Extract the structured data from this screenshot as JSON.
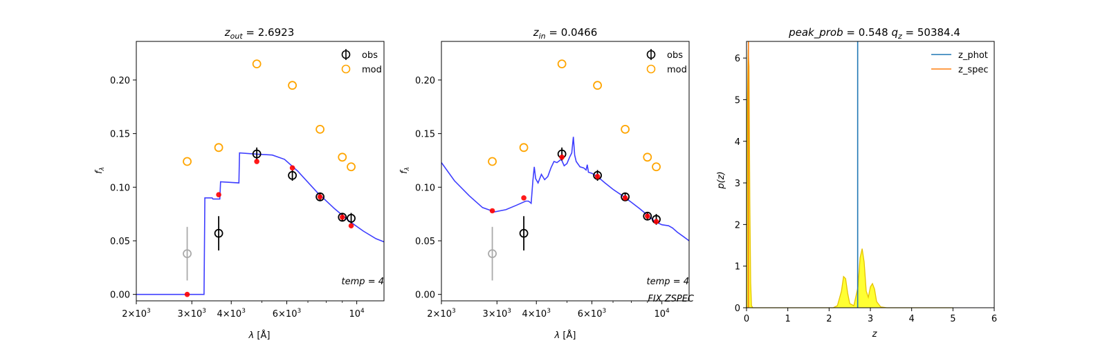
{
  "chart_data": [
    {
      "type": "scatter",
      "title": {
        "var": "z",
        "sub": "out",
        "value": "2.6923"
      },
      "xlabel": {
        "pre": "λ [",
        "unit": "Å",
        "post": "]"
      },
      "ylabel": {
        "var": "f",
        "sub": "λ"
      },
      "xscale": "log",
      "xlim": [
        2000,
        12200
      ],
      "ylim": [
        -0.006,
        0.236
      ],
      "xticks": [
        {
          "x": 2000,
          "base": "2×10",
          "exp": "3"
        },
        {
          "x": 3000,
          "base": "3×10",
          "exp": "3"
        },
        {
          "x": 4000,
          "base": "4×10",
          "exp": "3"
        },
        {
          "x": 6000,
          "base": "6×10",
          "exp": "3"
        },
        {
          "x": 10000,
          "base": "10",
          "exp": "4"
        }
      ],
      "yticks": [
        "0.00",
        "0.05",
        "0.10",
        "0.15",
        "0.20"
      ],
      "legend": {
        "position": "top-right",
        "entries": [
          "obs",
          "mod"
        ]
      },
      "annotations": [
        {
          "text": "temp = 4",
          "style": "italic",
          "position": "bottom-right"
        }
      ],
      "series": [
        {
          "name": "obs",
          "color": "#000000",
          "marker": "open-circle",
          "points": [
            {
              "x": 3650,
              "y": 0.057,
              "err": 0.016
            },
            {
              "x": 4820,
              "y": 0.131,
              "err": 0.006
            },
            {
              "x": 6250,
              "y": 0.111,
              "err": 0.005
            },
            {
              "x": 7650,
              "y": 0.091,
              "err": 0.004
            },
            {
              "x": 9000,
              "y": 0.072,
              "err": 0.004
            },
            {
              "x": 9600,
              "y": 0.071,
              "err": 0.005
            }
          ]
        },
        {
          "name": "obs (excluded)",
          "color": "#aaaaaa",
          "marker": "open-circle",
          "points": [
            {
              "x": 2900,
              "y": 0.038,
              "err": 0.025
            }
          ]
        },
        {
          "name": "mod",
          "color": "#ffa500",
          "marker": "open-circle",
          "points": [
            {
              "x": 2900,
              "y": 0.124
            },
            {
              "x": 3650,
              "y": 0.137
            },
            {
              "x": 4820,
              "y": 0.215
            },
            {
              "x": 6250,
              "y": 0.195
            },
            {
              "x": 7650,
              "y": 0.154
            },
            {
              "x": 9000,
              "y": 0.128
            },
            {
              "x": 9600,
              "y": 0.119
            }
          ]
        },
        {
          "name": "model flux",
          "color": "#ff0000",
          "marker": "dot",
          "points": [
            {
              "x": 2900,
              "y": 0.0
            },
            {
              "x": 3650,
              "y": 0.093
            },
            {
              "x": 4820,
              "y": 0.124
            },
            {
              "x": 6250,
              "y": 0.118
            },
            {
              "x": 7650,
              "y": 0.091
            },
            {
              "x": 9000,
              "y": 0.072
            },
            {
              "x": 9600,
              "y": 0.064
            }
          ]
        },
        {
          "name": "template",
          "color": "#3333ff",
          "marker": "line",
          "points": [
            [
              2000,
              0.0
            ],
            [
              3280,
              0.0
            ],
            [
              3300,
              0.09
            ],
            [
              3480,
              0.09
            ],
            [
              3500,
              0.089
            ],
            [
              3680,
              0.089
            ],
            [
              3700,
              0.105
            ],
            [
              4230,
              0.104
            ],
            [
              4250,
              0.132
            ],
            [
              4700,
              0.131
            ],
            [
              5400,
              0.13
            ],
            [
              5900,
              0.126
            ],
            [
              6500,
              0.115
            ],
            [
              7500,
              0.095
            ],
            [
              8500,
              0.08
            ],
            [
              9500,
              0.068
            ],
            [
              10500,
              0.059
            ],
            [
              11500,
              0.052
            ],
            [
              12200,
              0.049
            ]
          ]
        }
      ]
    },
    {
      "type": "scatter",
      "title": {
        "var": "z",
        "sub": "in",
        "value": "0.0466"
      },
      "xlabel": {
        "pre": "λ [",
        "unit": "Å",
        "post": "]"
      },
      "ylabel": {
        "var": "f",
        "sub": "λ"
      },
      "xscale": "log",
      "xlim": [
        2000,
        12200
      ],
      "ylim": [
        -0.006,
        0.236
      ],
      "xticks": [
        {
          "x": 2000,
          "base": "2×10",
          "exp": "3"
        },
        {
          "x": 3000,
          "base": "3×10",
          "exp": "3"
        },
        {
          "x": 4000,
          "base": "4×10",
          "exp": "3"
        },
        {
          "x": 6000,
          "base": "6×10",
          "exp": "3"
        },
        {
          "x": 10000,
          "base": "10",
          "exp": "4"
        }
      ],
      "yticks": [
        "0.00",
        "0.05",
        "0.10",
        "0.15",
        "0.20"
      ],
      "legend": {
        "position": "top-right",
        "entries": [
          "obs",
          "mod"
        ]
      },
      "annotations": [
        {
          "text": "temp = 4",
          "style": "italic",
          "position": "bottom-right"
        },
        {
          "text": "FIX ZSPEC",
          "style": "italic",
          "position": "bottom-right-lower"
        }
      ],
      "series": [
        {
          "name": "obs",
          "color": "#000000",
          "marker": "open-circle",
          "points": [
            {
              "x": 3650,
              "y": 0.057,
              "err": 0.016
            },
            {
              "x": 4820,
              "y": 0.131,
              "err": 0.006
            },
            {
              "x": 6250,
              "y": 0.111,
              "err": 0.005
            },
            {
              "x": 7650,
              "y": 0.091,
              "err": 0.004
            },
            {
              "x": 9000,
              "y": 0.073,
              "err": 0.004
            },
            {
              "x": 9600,
              "y": 0.07,
              "err": 0.005
            }
          ]
        },
        {
          "name": "obs (excluded)",
          "color": "#aaaaaa",
          "marker": "open-circle",
          "points": [
            {
              "x": 2900,
              "y": 0.038,
              "err": 0.025
            }
          ]
        },
        {
          "name": "mod",
          "color": "#ffa500",
          "marker": "open-circle",
          "points": [
            {
              "x": 2900,
              "y": 0.124
            },
            {
              "x": 3650,
              "y": 0.137
            },
            {
              "x": 4820,
              "y": 0.215
            },
            {
              "x": 6250,
              "y": 0.195
            },
            {
              "x": 7650,
              "y": 0.154
            },
            {
              "x": 9000,
              "y": 0.128
            },
            {
              "x": 9600,
              "y": 0.119
            }
          ]
        },
        {
          "name": "model flux",
          "color": "#ff0000",
          "marker": "dot",
          "points": [
            {
              "x": 2900,
              "y": 0.078
            },
            {
              "x": 3650,
              "y": 0.09
            },
            {
              "x": 4820,
              "y": 0.128
            },
            {
              "x": 6250,
              "y": 0.11
            },
            {
              "x": 7650,
              "y": 0.09
            },
            {
              "x": 9000,
              "y": 0.073
            },
            {
              "x": 9600,
              "y": 0.068
            }
          ]
        },
        {
          "name": "template",
          "color": "#3333ff",
          "marker": "line",
          "points": [
            [
              2000,
              0.123
            ],
            [
              2200,
              0.106
            ],
            [
              2450,
              0.092
            ],
            [
              2700,
              0.081
            ],
            [
              2950,
              0.077
            ],
            [
              3200,
              0.079
            ],
            [
              3450,
              0.083
            ],
            [
              3700,
              0.087
            ],
            [
              3780,
              0.087
            ],
            [
              3850,
              0.085
            ],
            [
              3900,
              0.106
            ],
            [
              3940,
              0.119
            ],
            [
              3980,
              0.108
            ],
            [
              4050,
              0.104
            ],
            [
              4150,
              0.112
            ],
            [
              4250,
              0.107
            ],
            [
              4350,
              0.11
            ],
            [
              4450,
              0.118
            ],
            [
              4550,
              0.124
            ],
            [
              4650,
              0.123
            ],
            [
              4800,
              0.126
            ],
            [
              4900,
              0.12
            ],
            [
              5000,
              0.122
            ],
            [
              5100,
              0.128
            ],
            [
              5180,
              0.132
            ],
            [
              5240,
              0.147
            ],
            [
              5290,
              0.13
            ],
            [
              5350,
              0.124
            ],
            [
              5500,
              0.119
            ],
            [
              5650,
              0.118
            ],
            [
              5750,
              0.116
            ],
            [
              5800,
              0.121
            ],
            [
              5850,
              0.114
            ],
            [
              6000,
              0.113
            ],
            [
              6300,
              0.109
            ],
            [
              6600,
              0.104
            ],
            [
              7000,
              0.098
            ],
            [
              7500,
              0.092
            ],
            [
              8000,
              0.086
            ],
            [
              8500,
              0.08
            ],
            [
              9000,
              0.074
            ],
            [
              9500,
              0.068
            ],
            [
              10000,
              0.065
            ],
            [
              10500,
              0.064
            ],
            [
              10800,
              0.062
            ],
            [
              11200,
              0.058
            ],
            [
              11700,
              0.054
            ],
            [
              12200,
              0.05
            ]
          ]
        }
      ]
    },
    {
      "type": "area",
      "title": {
        "a_label": "peak_prob",
        "a_value": "0.548",
        "b_var": "q",
        "b_sub": "z",
        "b_value": "50384.4"
      },
      "xlabel": "z",
      "ylabel": "p(z)",
      "xlim": [
        0,
        6
      ],
      "ylim": [
        0,
        6.4
      ],
      "xticks": [
        "0",
        "1",
        "2",
        "3",
        "4",
        "5",
        "6"
      ],
      "yticks": [
        "0",
        "1",
        "2",
        "3",
        "4",
        "5",
        "6"
      ],
      "legend": {
        "position": "top-right",
        "entries": [
          "z_phot",
          "z_spec"
        ]
      },
      "series": [
        {
          "name": "z_phot",
          "color": "#1f77b4",
          "type": "vline",
          "x": 2.6923
        },
        {
          "name": "z_spec",
          "color": "#ff7f0e",
          "type": "vline",
          "x": 0.0466
        },
        {
          "name": "p(z)",
          "color": "#ffff33",
          "edge": "#e6c200",
          "type": "area",
          "x_end": 5.0,
          "points": [
            [
              0.0,
              0.0
            ],
            [
              0.02,
              4.8
            ],
            [
              0.04,
              6.2
            ],
            [
              0.06,
              5.8
            ],
            [
              0.08,
              2.5
            ],
            [
              0.1,
              0.6
            ],
            [
              0.12,
              0.05
            ],
            [
              0.15,
              0.0
            ],
            [
              2.1,
              0.0
            ],
            [
              2.2,
              0.05
            ],
            [
              2.3,
              0.4
            ],
            [
              2.35,
              0.75
            ],
            [
              2.4,
              0.7
            ],
            [
              2.45,
              0.35
            ],
            [
              2.5,
              0.1
            ],
            [
              2.6,
              0.05
            ],
            [
              2.7,
              0.5
            ],
            [
              2.75,
              1.2
            ],
            [
              2.8,
              1.42
            ],
            [
              2.85,
              1.1
            ],
            [
              2.9,
              0.4
            ],
            [
              2.95,
              0.25
            ],
            [
              3.0,
              0.5
            ],
            [
              3.05,
              0.58
            ],
            [
              3.1,
              0.45
            ],
            [
              3.15,
              0.15
            ],
            [
              3.25,
              0.02
            ],
            [
              3.4,
              0.0
            ],
            [
              5.0,
              0.0
            ]
          ]
        }
      ]
    }
  ]
}
